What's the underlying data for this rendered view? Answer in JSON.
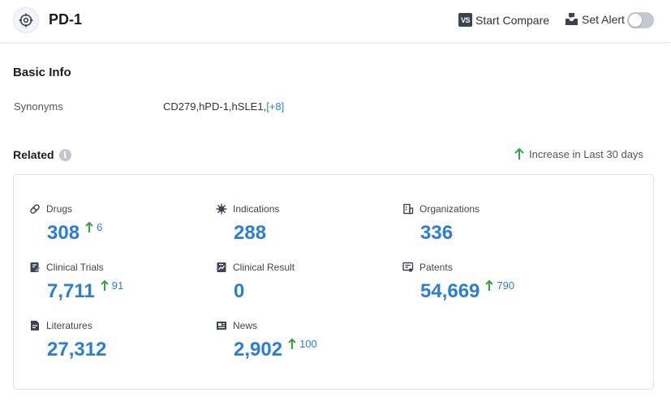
{
  "header": {
    "title": "PD-1",
    "start_compare": "Start Compare",
    "compare_icon_text": "VS",
    "set_alert": "Set Alert",
    "alert_enabled": false
  },
  "basic_info": {
    "title": "Basic Info",
    "synonyms_label": "Synonyms",
    "synonyms_value": "CD279,hPD-1,hSLE1,",
    "synonyms_more": "[+8]"
  },
  "related": {
    "title": "Related",
    "info_icon": "i",
    "legend": "Increase in Last 30 days",
    "items": [
      {
        "label": "Drugs",
        "value": "308",
        "increase": "6",
        "icon": "pill-icon"
      },
      {
        "label": "Indications",
        "value": "288",
        "increase": "",
        "icon": "virus-icon"
      },
      {
        "label": "Organizations",
        "value": "336",
        "increase": "",
        "icon": "building-icon"
      },
      {
        "label": "Clinical Trials",
        "value": "7,711",
        "increase": "91",
        "icon": "clinical-trials-icon"
      },
      {
        "label": "Clinical Result",
        "value": "0",
        "increase": "",
        "icon": "chart-doc-icon"
      },
      {
        "label": "Patents",
        "value": "54,669",
        "increase": "790",
        "icon": "patent-icon"
      },
      {
        "label": "Literatures",
        "value": "27,312",
        "increase": "",
        "icon": "document-icon"
      },
      {
        "label": "News",
        "value": "2,902",
        "increase": "100",
        "icon": "newspaper-icon"
      }
    ]
  },
  "colors": {
    "accent": "#2a7fd4",
    "increase_arrow": "#3aa23a",
    "icon_dark": "#3d4451"
  }
}
